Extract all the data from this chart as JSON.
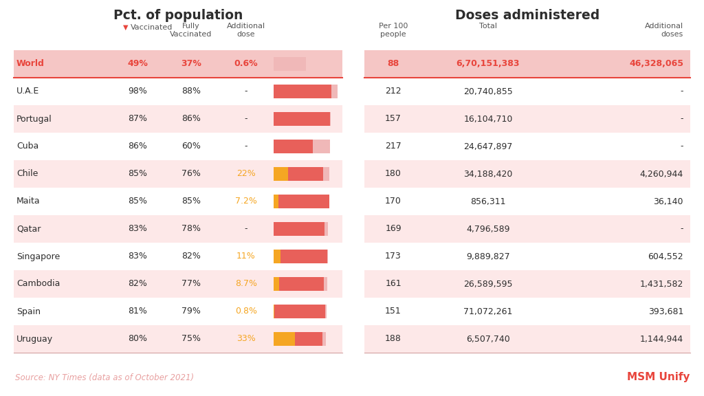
{
  "title_left": "Pct. of population",
  "title_right": "Doses administered",
  "countries": [
    "World",
    "U.A.E",
    "Portugal",
    "Cuba",
    "Chile",
    "Maita",
    "Qatar",
    "Singapore",
    "Cambodia",
    "Spain",
    "Uruguay"
  ],
  "vaccinated": [
    49,
    98,
    87,
    86,
    85,
    85,
    83,
    83,
    82,
    81,
    80
  ],
  "fully_vaccinated": [
    37,
    88,
    86,
    60,
    76,
    85,
    78,
    82,
    77,
    79,
    75
  ],
  "additional_dose": [
    0.6,
    null,
    null,
    null,
    22,
    7.2,
    null,
    11,
    8.7,
    0.8,
    33
  ],
  "additional_dose_str": [
    "0.6%",
    "-",
    "-",
    "-",
    "22%",
    "7.2%",
    "-",
    "11%",
    "8.7%",
    "0.8%",
    "33%"
  ],
  "per_100": [
    88,
    212,
    157,
    217,
    180,
    170,
    169,
    173,
    161,
    151,
    188
  ],
  "total": [
    "6,70,151,383",
    "20,740,855",
    "16,104,710",
    "24,647,897",
    "34,188,420",
    "856,311",
    "4,796,589",
    "9,889,827",
    "26,589,595",
    "71,072,261",
    "6,507,740"
  ],
  "additional_doses": [
    "46,328,065",
    "-",
    "-",
    "-",
    "4,260,944",
    "36,140",
    "-",
    "604,552",
    "1,431,582",
    "393,681",
    "1,144,944"
  ],
  "world_row_color": "#f5c6c5",
  "alt_row_color": "#fde8e8",
  "white_row_color": "#ffffff",
  "bar_red": "#e8605a",
  "bar_light_pink": "#f0b8b8",
  "bar_orange": "#f5a623",
  "world_text_color": "#e8453c",
  "normal_text_color": "#2d2d2d",
  "header_text_color": "#555555",
  "source_text": "Source: NY Times (data as of October 2021)",
  "brand_text": "MSM Unify",
  "brand_color": "#e8453c",
  "source_color": "#e8a0a0",
  "divider_color": "#e8453c",
  "bottom_line_color": "#d4a0a0"
}
